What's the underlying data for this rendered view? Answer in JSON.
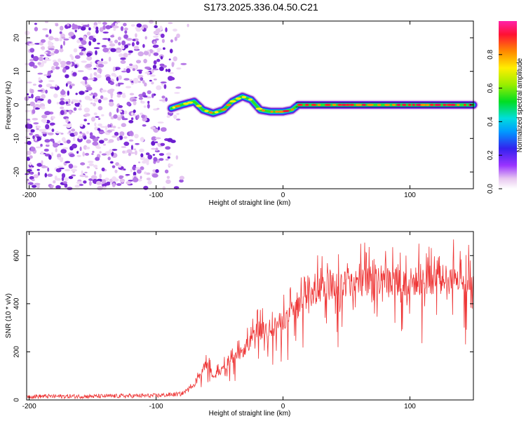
{
  "title": "S173.2025.336.04.50.C21",
  "chart_data": [
    {
      "type": "heatmap",
      "name": "spectrogram",
      "xlabel": "Height of straight line (km)",
      "ylabel": "Frequency (Hz)",
      "xlim": [
        -202,
        150
      ],
      "ylim": [
        -25,
        25
      ],
      "xticks": [
        -200,
        -100,
        0,
        100
      ],
      "yticks": [
        -20,
        -10,
        0,
        10,
        20
      ],
      "noise_region_x": [
        -202,
        -88
      ],
      "signal_start_x": -88,
      "signal_center_trace": [
        {
          "x": -88,
          "y": -1
        },
        {
          "x": -80,
          "y": 0
        },
        {
          "x": -70,
          "y": 1
        },
        {
          "x": -63,
          "y": -1.5
        },
        {
          "x": -55,
          "y": -2.5
        },
        {
          "x": -47,
          "y": -1.5
        },
        {
          "x": -40,
          "y": 1
        },
        {
          "x": -32,
          "y": 2.5
        },
        {
          "x": -25,
          "y": 1.5
        },
        {
          "x": -18,
          "y": -1.5
        },
        {
          "x": -10,
          "y": -2
        },
        {
          "x": 0,
          "y": -2
        },
        {
          "x": 7,
          "y": -1.5
        },
        {
          "x": 12,
          "y": 0
        },
        {
          "x": 30,
          "y": 0
        },
        {
          "x": 150,
          "y": 0
        }
      ],
      "colorbar": {
        "label": "Normalized spectral amplitude",
        "ticks": [
          0.0,
          0.2,
          0.4,
          0.6,
          0.8
        ],
        "range": [
          0,
          1
        ]
      }
    },
    {
      "type": "line",
      "name": "snr",
      "xlabel": "Height of straight line (km)",
      "ylabel": "SNR (10 * v/v)",
      "xlim": [
        -202,
        150
      ],
      "ylim": [
        0,
        700
      ],
      "xticks": [
        -200,
        -100,
        0,
        100
      ],
      "yticks": [
        0,
        200,
        400,
        600
      ],
      "color": "#ee3333",
      "series": [
        {
          "name": "SNR",
          "x": [
            -202,
            -150,
            -100,
            -80,
            -70,
            -60,
            -55,
            -45,
            -30,
            -20,
            -10,
            0,
            10,
            20,
            30,
            40,
            60,
            80,
            100,
            120,
            150
          ],
          "values": [
            15,
            15,
            18,
            25,
            60,
            150,
            100,
            140,
            210,
            280,
            300,
            330,
            380,
            420,
            460,
            480,
            490,
            500,
            490,
            500,
            500
          ]
        }
      ]
    }
  ]
}
